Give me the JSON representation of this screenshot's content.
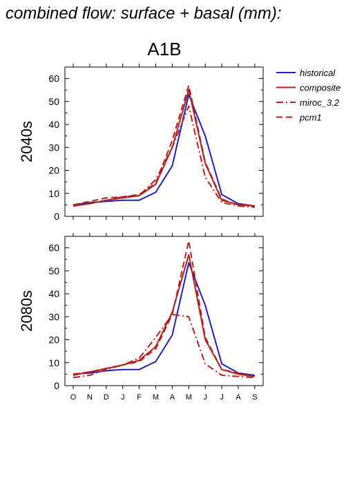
{
  "title": "combined flow: surface + basal (mm):",
  "scenario": "A1B",
  "colors": {
    "historical": "#1f1fbf",
    "future": "#b5201e"
  },
  "legend": [
    {
      "label": "historical",
      "color": "#1f1fbf",
      "style": "solid"
    },
    {
      "label": "composite",
      "color": "#b5201e",
      "style": "solid"
    },
    {
      "label": "miroc_3.2",
      "color": "#b5201e",
      "style": "dashdot"
    },
    {
      "label": "pcm1",
      "color": "#b5201e",
      "style": "dashed"
    }
  ],
  "chart_data": [
    {
      "type": "line",
      "panel_label": "2040s",
      "categories": [
        "O",
        "N",
        "D",
        "J",
        "F",
        "M",
        "A",
        "M",
        "J",
        "J",
        "A",
        "S"
      ],
      "ylim": [
        0,
        65
      ],
      "yticks": [
        0,
        10,
        20,
        30,
        40,
        50,
        60
      ],
      "series": [
        {
          "name": "historical",
          "color": "#1f1fbf",
          "style": "solid",
          "values": [
            5,
            6,
            6.5,
            7,
            7,
            10.5,
            22,
            53,
            35,
            9.5,
            5.5,
            4.5
          ]
        },
        {
          "name": "composite",
          "color": "#b5201e",
          "style": "solid",
          "values": [
            4.5,
            5.5,
            7,
            8,
            9,
            14,
            30,
            55,
            23,
            7,
            5,
            4.5
          ]
        },
        {
          "name": "miroc_3.2",
          "color": "#b5201e",
          "style": "dashdot",
          "values": [
            4.5,
            5.5,
            7,
            8.5,
            9,
            16,
            30,
            48,
            17,
            6,
            4.5,
            4
          ]
        },
        {
          "name": "pcm1",
          "color": "#b5201e",
          "style": "dashed",
          "values": [
            5,
            6.5,
            8,
            8.5,
            9.5,
            14.5,
            33,
            57,
            23.5,
            7.5,
            5,
            4.5
          ]
        }
      ]
    },
    {
      "type": "line",
      "panel_label": "2080s",
      "categories": [
        "O",
        "N",
        "D",
        "J",
        "F",
        "M",
        "A",
        "M",
        "J",
        "J",
        "A",
        "S"
      ],
      "ylim": [
        0,
        65
      ],
      "yticks": [
        0,
        10,
        20,
        30,
        40,
        50,
        60
      ],
      "series": [
        {
          "name": "historical",
          "color": "#1f1fbf",
          "style": "solid",
          "values": [
            5,
            5.5,
            6.5,
            7,
            7,
            10.5,
            22,
            53.5,
            35,
            9.5,
            5.5,
            4.5
          ]
        },
        {
          "name": "composite",
          "color": "#b5201e",
          "style": "solid",
          "values": [
            4.5,
            6,
            7.5,
            9,
            11,
            17,
            32,
            57,
            20,
            7,
            5,
            4
          ]
        },
        {
          "name": "miroc_3.2",
          "color": "#b5201e",
          "style": "dashdot",
          "values": [
            3.5,
            4.5,
            7,
            9,
            12,
            21,
            31,
            30,
            9.5,
            4.5,
            4,
            3.5
          ]
        },
        {
          "name": "pcm1",
          "color": "#b5201e",
          "style": "dashed",
          "values": [
            5,
            6,
            7.5,
            9,
            10.5,
            16,
            31,
            63,
            21,
            7,
            5.5,
            4
          ]
        }
      ]
    }
  ]
}
